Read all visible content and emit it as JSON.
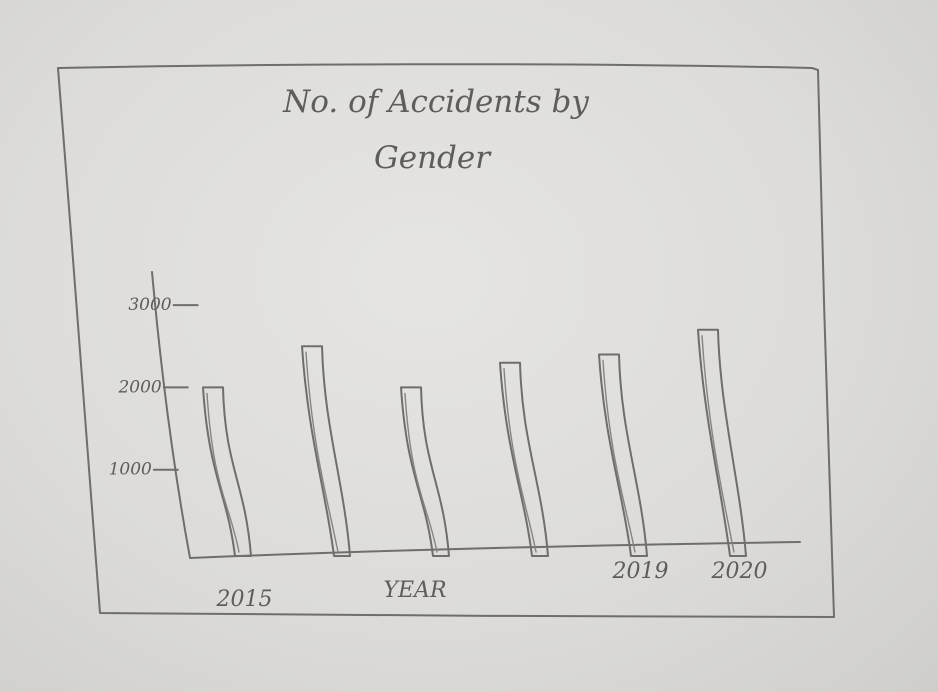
{
  "chart_data": {
    "type": "bar",
    "title_lines": [
      "No. of Accidents by",
      "Gender"
    ],
    "xlabel": "YEAR",
    "ylabel": "",
    "ylim": [
      0,
      3000
    ],
    "yticks": [
      {
        "value": 1000,
        "label": "1000"
      },
      {
        "value": 2000,
        "label": "2000"
      },
      {
        "value": 3000,
        "label": "3000"
      }
    ],
    "x_tick_labels": [
      {
        "position": 0.5,
        "label": "2015"
      },
      {
        "position": 4.5,
        "label": "2019"
      },
      {
        "position": 5.5,
        "label": "2020"
      }
    ],
    "values": [
      2000,
      2500,
      2000,
      2300,
      2400,
      2700
    ],
    "grid": false,
    "legend": "none"
  },
  "colors": {
    "pencil": "#6f6e6b",
    "paper": "#e3e2df"
  }
}
